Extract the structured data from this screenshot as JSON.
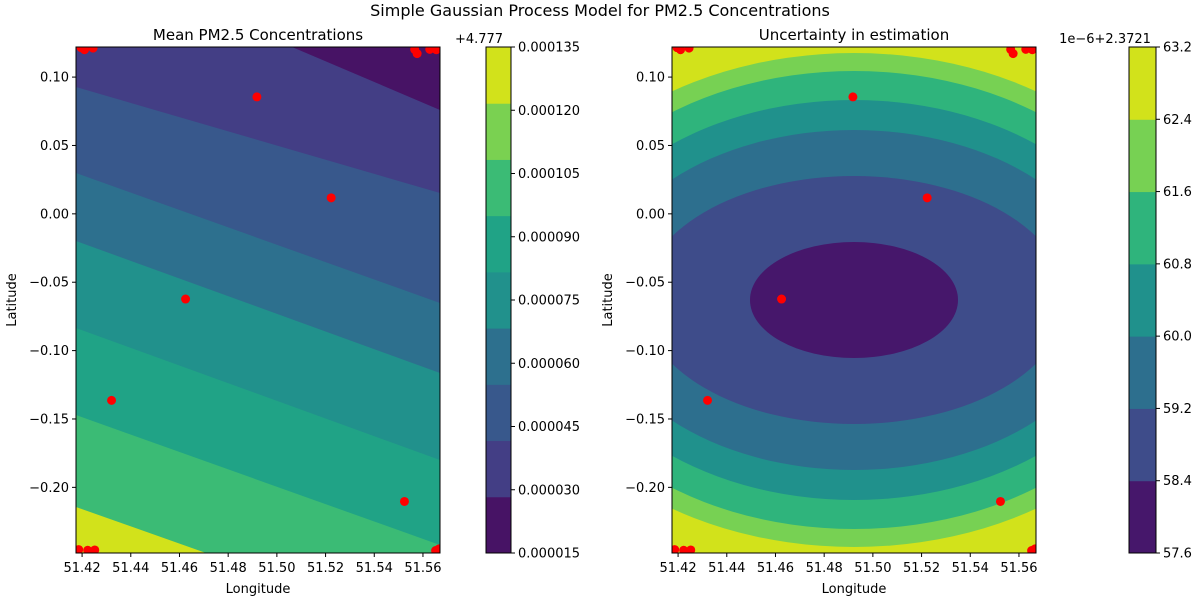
{
  "suptitle": "Simple Gaussian Process Model for PM2.5 Concentrations",
  "chart_data": [
    {
      "type": "contour",
      "title": "Mean PM2.5 Concentrations",
      "xlabel": "Longitude",
      "ylabel": "Latitude",
      "xlim": [
        51.4175,
        51.567
      ],
      "ylim": [
        -0.248,
        0.122
      ],
      "xticks": [
        "51.42",
        "51.44",
        "51.46",
        "51.48",
        "51.50",
        "51.52",
        "51.54",
        "51.56"
      ],
      "yticks": [
        "0.10",
        "0.05",
        "0.00",
        "−0.05",
        "−0.10",
        "−0.15",
        "−0.20"
      ],
      "colorbar": {
        "offset_label": "+4.777",
        "ticks": [
          "0.000015",
          "0.000030",
          "0.000045",
          "0.000060",
          "0.000075",
          "0.000090",
          "0.000105",
          "0.000120",
          "0.000135"
        ],
        "level_colors": [
          "#471365",
          "#433e85",
          "#38588c",
          "#2d708e",
          "#21918c",
          "#20a386",
          "#3bbb75",
          "#7ad151",
          "#d2e21b"
        ]
      },
      "points": [
        {
          "x": 51.4918,
          "y": 0.0855
        },
        {
          "x": 51.5223,
          "y": 0.0117
        },
        {
          "x": 51.4625,
          "y": -0.0623
        },
        {
          "x": 51.4321,
          "y": -0.1364
        },
        {
          "x": 51.5524,
          "y": -0.2103
        },
        {
          "x": 51.4196,
          "y": 0.1215
        },
        {
          "x": 51.421,
          "y": 0.12
        },
        {
          "x": 51.4245,
          "y": 0.1212
        },
        {
          "x": 51.5566,
          "y": 0.1202
        },
        {
          "x": 51.5576,
          "y": 0.1172
        },
        {
          "x": 51.5628,
          "y": 0.1203
        },
        {
          "x": 51.5655,
          "y": 0.12
        },
        {
          "x": 51.4186,
          "y": -0.2455
        },
        {
          "x": 51.4223,
          "y": -0.246
        },
        {
          "x": 51.4252,
          "y": -0.2458
        },
        {
          "x": 51.5652,
          "y": -0.2462
        },
        {
          "x": 51.5666,
          "y": -0.245
        }
      ],
      "point_color": "#ff0000"
    },
    {
      "type": "contour",
      "title": "Uncertainty in estimation",
      "xlabel": "Longitude",
      "ylabel": "Latitude",
      "xlim": [
        51.4175,
        51.567
      ],
      "ylim": [
        -0.248,
        0.122
      ],
      "xticks": [
        "51.42",
        "51.44",
        "51.46",
        "51.48",
        "51.50",
        "51.52",
        "51.54",
        "51.56"
      ],
      "yticks": [
        "0.10",
        "0.05",
        "0.00",
        "−0.05",
        "−0.10",
        "−0.15",
        "−0.20"
      ],
      "colorbar": {
        "offset_label": "1e−6+2.3721",
        "ticks": [
          "57.6",
          "58.4",
          "59.2",
          "60.0",
          "60.8",
          "61.6",
          "62.4",
          "63.2"
        ],
        "level_colors": [
          "#46176b",
          "#3e4c8a",
          "#2d6f8e",
          "#20918c",
          "#2fb47c",
          "#77d153",
          "#d2e21b"
        ]
      },
      "points": [
        {
          "x": 51.4918,
          "y": 0.0855
        },
        {
          "x": 51.5223,
          "y": 0.0117
        },
        {
          "x": 51.4625,
          "y": -0.0623
        },
        {
          "x": 51.4321,
          "y": -0.1364
        },
        {
          "x": 51.5524,
          "y": -0.2103
        },
        {
          "x": 51.4196,
          "y": 0.1215
        },
        {
          "x": 51.421,
          "y": 0.12
        },
        {
          "x": 51.4245,
          "y": 0.1212
        },
        {
          "x": 51.5566,
          "y": 0.1202
        },
        {
          "x": 51.5576,
          "y": 0.1172
        },
        {
          "x": 51.5628,
          "y": 0.1203
        },
        {
          "x": 51.5655,
          "y": 0.12
        },
        {
          "x": 51.4186,
          "y": -0.2455
        },
        {
          "x": 51.4223,
          "y": -0.246
        },
        {
          "x": 51.4252,
          "y": -0.2458
        },
        {
          "x": 51.5652,
          "y": -0.2462
        },
        {
          "x": 51.5666,
          "y": -0.245
        }
      ],
      "point_color": "#ff0000"
    }
  ]
}
